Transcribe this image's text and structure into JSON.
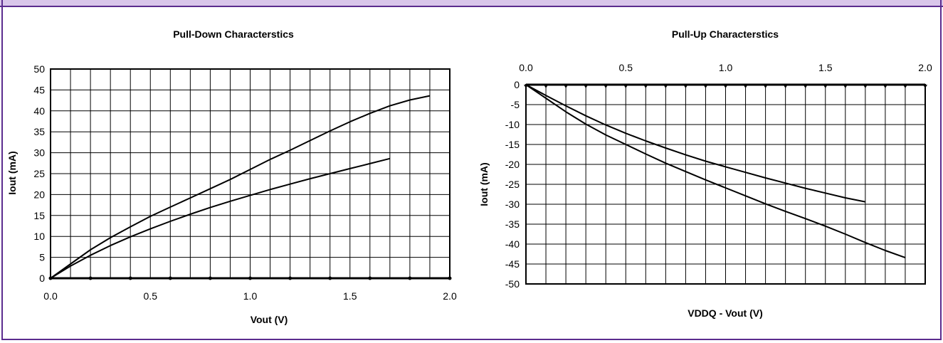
{
  "header": {
    "banner_text": ""
  },
  "chart_data": [
    {
      "type": "line",
      "title": "Pull-Down Characterstics",
      "xlabel": "Vout (V)",
      "ylabel": "Iout (mA)",
      "xlim": [
        0,
        2.0
      ],
      "ylim": [
        0,
        50
      ],
      "x_ticks": [
        "0.0",
        "0.5",
        "1.0",
        "1.5",
        "2.0"
      ],
      "y_ticks": [
        "0",
        "5",
        "10",
        "15",
        "20",
        "25",
        "30",
        "35",
        "40",
        "45",
        "50"
      ],
      "grid": true,
      "series": [
        {
          "x": [
            0,
            0.1,
            0.2,
            0.3,
            0.4,
            0.5,
            0.6,
            0.7,
            0.8,
            0.9,
            1.0,
            1.1,
            1.2,
            1.3,
            1.4,
            1.5,
            1.6,
            1.7,
            1.8,
            1.9
          ],
          "y": [
            0,
            3.4,
            6.8,
            9.7,
            12.3,
            14.8,
            17.0,
            19.2,
            21.4,
            23.6,
            26.0,
            28.4,
            30.6,
            32.9,
            35.2,
            37.4,
            39.4,
            41.2,
            42.6,
            43.6
          ]
        },
        {
          "x": [
            0,
            0.1,
            0.2,
            0.3,
            0.4,
            0.5,
            0.6,
            0.7,
            0.8,
            0.9,
            1.0,
            1.1,
            1.2,
            1.3,
            1.4,
            1.5,
            1.6,
            1.7
          ],
          "y": [
            0,
            2.9,
            5.5,
            7.8,
            9.9,
            11.8,
            13.6,
            15.3,
            16.9,
            18.4,
            19.8,
            21.2,
            22.5,
            23.8,
            25.0,
            26.2,
            27.4,
            28.6
          ]
        }
      ]
    },
    {
      "type": "line",
      "title": "Pull-Up Characterstics",
      "xlabel": "VDDQ - Vout (V)",
      "ylabel": "Iout (mA)",
      "xlim": [
        0,
        2.0
      ],
      "ylim": [
        -50,
        0
      ],
      "x_ticks": [
        "0.0",
        "0.5",
        "1.0",
        "1.5",
        "2.0"
      ],
      "y_ticks": [
        "0",
        "-5",
        "-10",
        "-15",
        "-20",
        "-25",
        "-30",
        "-35",
        "-40",
        "-45",
        "-50"
      ],
      "x_axis_position": "top",
      "grid": true,
      "series": [
        {
          "x": [
            0,
            0.1,
            0.2,
            0.3,
            0.4,
            0.5,
            0.6,
            0.7,
            0.8,
            0.9,
            1.0,
            1.1,
            1.2,
            1.3,
            1.4,
            1.5,
            1.6,
            1.7,
            1.8,
            1.9
          ],
          "y": [
            0,
            -3.4,
            -6.8,
            -9.9,
            -12.6,
            -15.0,
            -17.4,
            -19.7,
            -21.8,
            -23.9,
            -25.9,
            -27.9,
            -29.9,
            -31.8,
            -33.6,
            -35.5,
            -37.5,
            -39.6,
            -41.6,
            -43.4
          ]
        },
        {
          "x": [
            0,
            0.1,
            0.2,
            0.3,
            0.4,
            0.5,
            0.6,
            0.7,
            0.8,
            0.9,
            1.0,
            1.1,
            1.2,
            1.3,
            1.4,
            1.5,
            1.6,
            1.7
          ],
          "y": [
            0,
            -2.7,
            -5.3,
            -7.8,
            -10.1,
            -12.2,
            -14.1,
            -15.9,
            -17.6,
            -19.2,
            -20.6,
            -22.0,
            -23.4,
            -24.7,
            -26.0,
            -27.2,
            -28.4,
            -29.4
          ]
        }
      ]
    }
  ]
}
